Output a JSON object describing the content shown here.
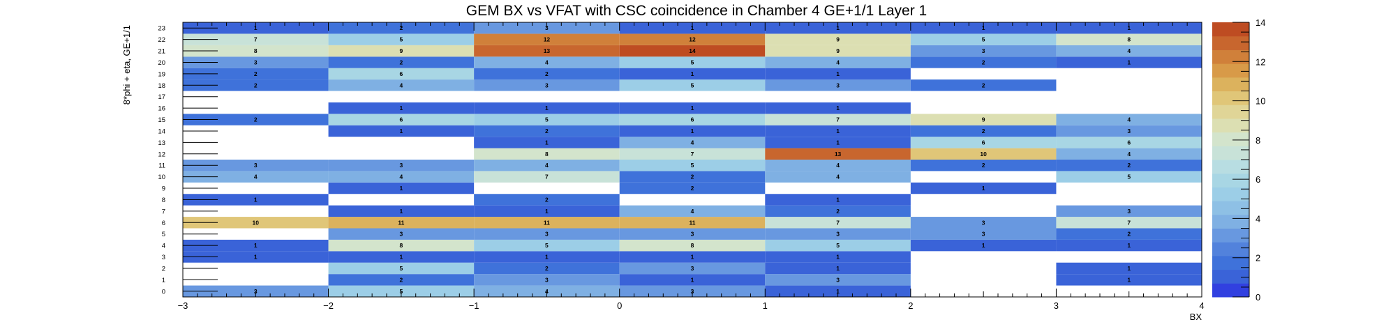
{
  "chart_data": {
    "type": "heatmap",
    "title": "GEM BX vs VFAT with CSC coincidence in Chamber 4 GE+1/1 Layer 1",
    "xlabel": "BX",
    "ylabel": "8*phi + eta, GE+1/1",
    "xlim": [
      -3,
      4
    ],
    "ylim": [
      0,
      24
    ],
    "zlim": [
      0,
      14
    ],
    "x_bins": [
      -3,
      -2,
      -1,
      0,
      1,
      2,
      3
    ],
    "x_bin_width": 1,
    "x_ticks": [
      "−3",
      "−2",
      "−1",
      "0",
      "1",
      "2",
      "3",
      "4"
    ],
    "y_ticks": [
      "0",
      "1",
      "2",
      "3",
      "4",
      "5",
      "6",
      "7",
      "8",
      "9",
      "10",
      "11",
      "12",
      "13",
      "14",
      "15",
      "16",
      "17",
      "18",
      "19",
      "20",
      "21",
      "22",
      "23"
    ],
    "z_ticks": [
      "0",
      "2",
      "4",
      "6",
      "8",
      "10",
      "12",
      "14"
    ],
    "cells": [
      [
        3,
        5,
        4,
        3,
        1,
        null,
        null
      ],
      [
        null,
        2,
        3,
        1,
        3,
        null,
        1
      ],
      [
        null,
        5,
        2,
        3,
        1,
        null,
        1
      ],
      [
        1,
        1,
        1,
        1,
        1,
        null,
        null
      ],
      [
        1,
        8,
        5,
        8,
        5,
        1,
        1
      ],
      [
        null,
        3,
        3,
        3,
        3,
        3,
        2
      ],
      [
        10,
        11,
        11,
        11,
        7,
        3,
        7
      ],
      [
        null,
        1,
        1,
        4,
        2,
        null,
        3
      ],
      [
        1,
        null,
        2,
        null,
        1,
        null,
        null
      ],
      [
        null,
        1,
        null,
        2,
        null,
        1,
        null
      ],
      [
        4,
        4,
        7,
        2,
        4,
        null,
        5
      ],
      [
        3,
        3,
        4,
        5,
        4,
        2,
        2
      ],
      [
        null,
        null,
        8,
        7,
        13,
        10,
        4
      ],
      [
        null,
        null,
        1,
        4,
        1,
        6,
        6
      ],
      [
        null,
        1,
        2,
        1,
        1,
        2,
        3
      ],
      [
        2,
        6,
        5,
        6,
        7,
        9,
        4
      ],
      [
        null,
        1,
        1,
        1,
        1,
        null,
        null
      ],
      [
        null,
        null,
        null,
        null,
        null,
        null,
        null
      ],
      [
        2,
        4,
        3,
        5,
        3,
        2,
        null
      ],
      [
        2,
        6,
        2,
        1,
        1,
        null,
        null
      ],
      [
        3,
        2,
        4,
        5,
        4,
        2,
        1
      ],
      [
        8,
        9,
        13,
        14,
        9,
        3,
        4
      ],
      [
        7,
        5,
        12,
        12,
        9,
        5,
        8
      ],
      [
        1,
        2,
        3,
        1,
        1,
        1,
        1
      ]
    ],
    "palette": [
      "#3140e0",
      "#3a63d8",
      "#3f72da",
      "#5282dc",
      "#6898e0",
      "#7fb0e3",
      "#8ec0e5",
      "#9ccee7",
      "#a8d6e4",
      "#b8dde2",
      "#c8e2d8",
      "#d3e4cc",
      "#dcdfb2",
      "#e0d597",
      "#e0c678",
      "#dcb25d",
      "#d89a48",
      "#d0803a",
      "#c8662e",
      "#be4c22"
    ],
    "grid": false,
    "legend": "color-scale-right"
  }
}
